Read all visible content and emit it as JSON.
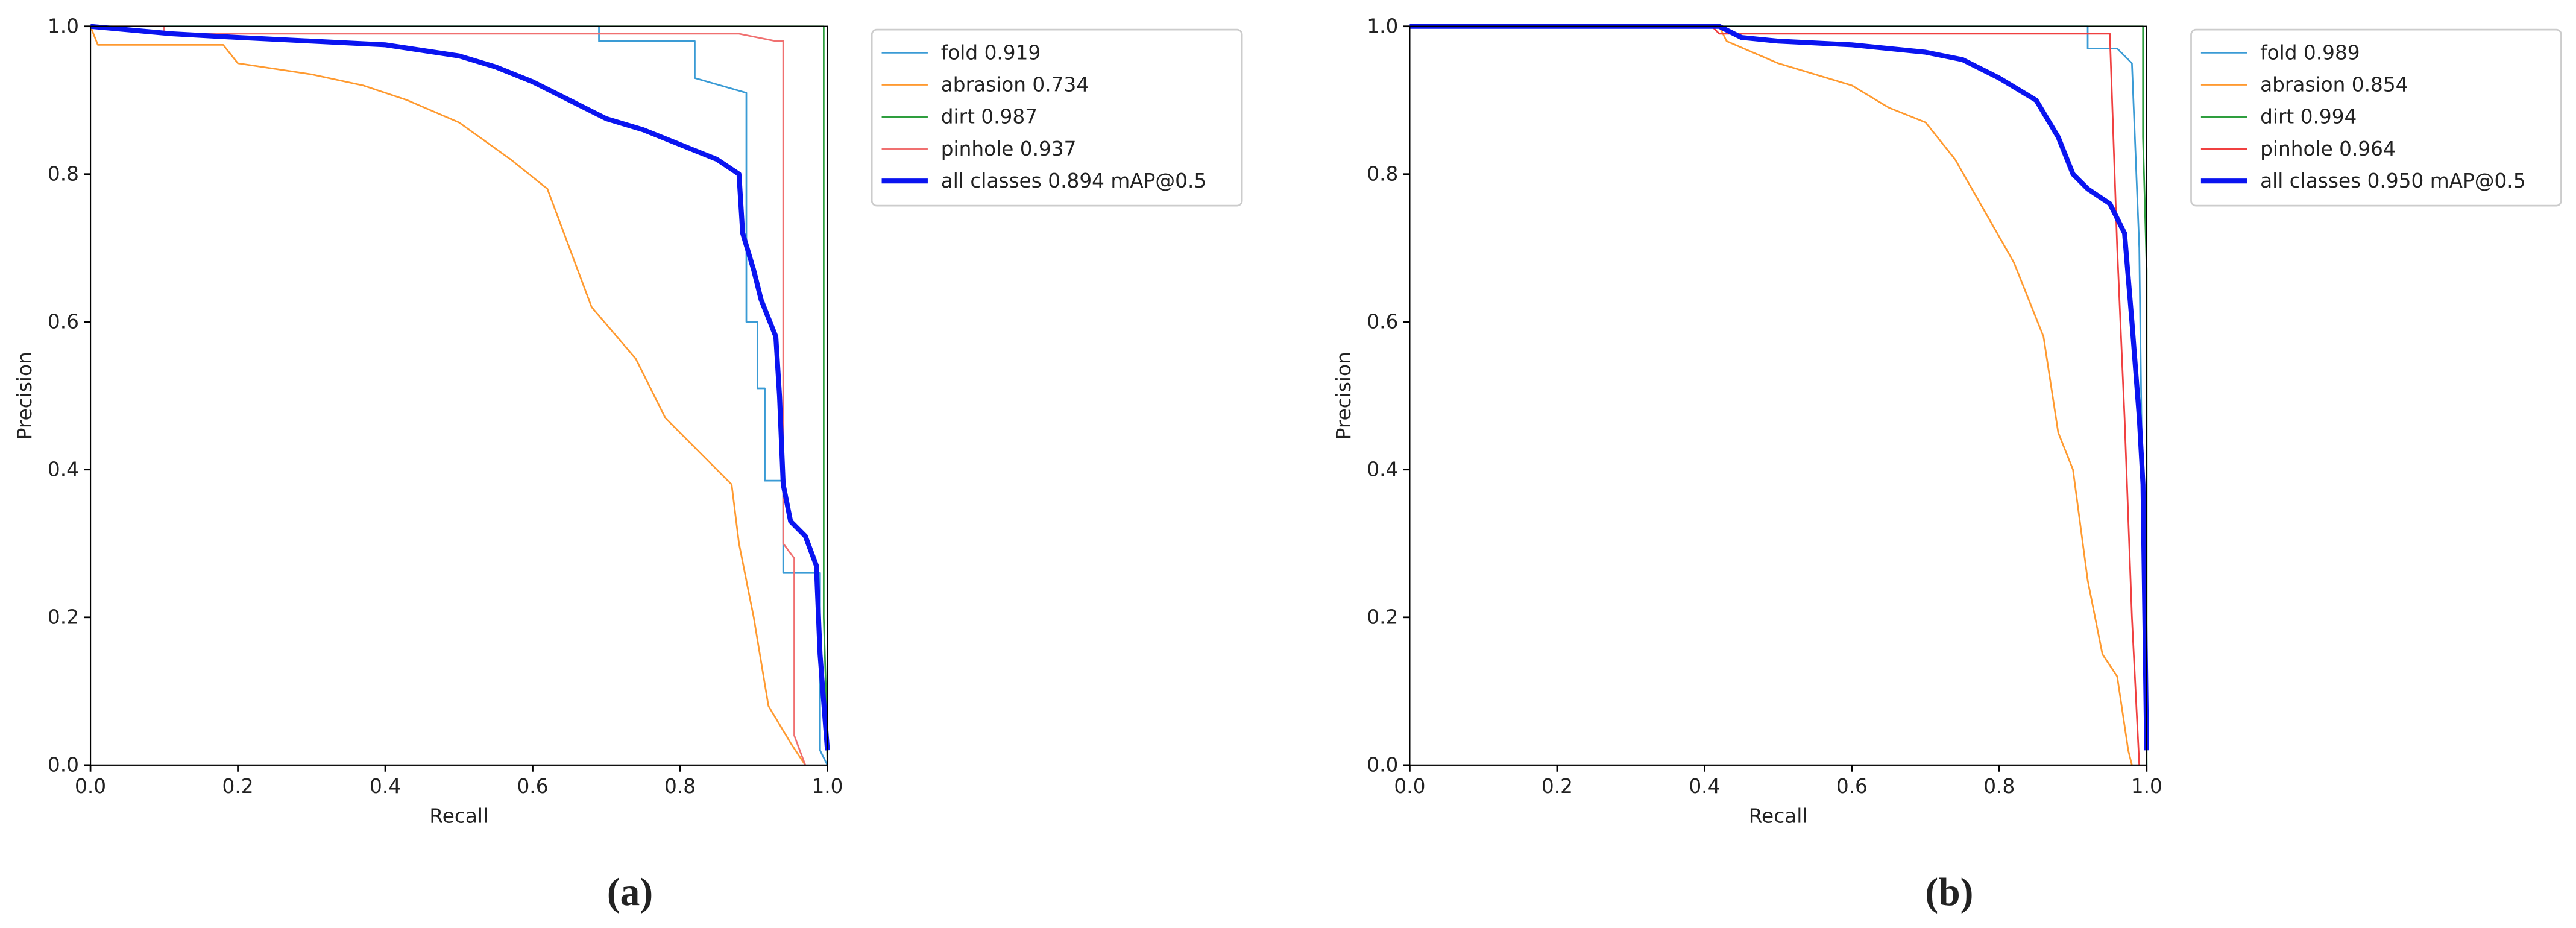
{
  "chart_data": [
    {
      "type": "line",
      "label": "(a)",
      "x_label": "Recall",
      "y_label": "Precision",
      "xlim": [
        0,
        1
      ],
      "ylim": [
        0,
        1
      ],
      "xticks": [
        {
          "value": 0,
          "label": "0.0"
        },
        0.2,
        0.4,
        0.6,
        0.8,
        {
          "value": 1,
          "label": "1.0"
        }
      ],
      "yticks": [
        {
          "value": 0,
          "label": "0.0"
        },
        0.2,
        0.4,
        0.6,
        0.8,
        {
          "value": 1,
          "label": "1.0"
        }
      ],
      "legend": "upper left outside",
      "series": [
        {
          "name": "fold 0.919",
          "color": "#3a9bd5",
          "linewidth": 1,
          "x": [
            0,
            0.69,
            0.69,
            0.82,
            0.82,
            0.89,
            0.89,
            0.905,
            0.905,
            0.915,
            0.915,
            0.94,
            0.94,
            0.99,
            0.99,
            1
          ],
          "values": [
            1,
            1,
            0.98,
            0.98,
            0.93,
            0.91,
            0.6,
            0.6,
            0.51,
            0.51,
            0.385,
            0.385,
            0.26,
            0.26,
            0.02,
            0
          ]
        },
        {
          "name": "abrasion 0.734",
          "color": "#ff9a30",
          "linewidth": 1,
          "x": [
            0,
            0.01,
            0.18,
            0.2,
            0.3,
            0.37,
            0.43,
            0.5,
            0.57,
            0.62,
            0.65,
            0.68,
            0.74,
            0.78,
            0.83,
            0.87,
            0.88,
            0.9,
            0.92,
            0.95,
            0.97
          ],
          "values": [
            1,
            0.975,
            0.975,
            0.95,
            0.935,
            0.92,
            0.9,
            0.87,
            0.82,
            0.78,
            0.7,
            0.62,
            0.55,
            0.47,
            0.42,
            0.38,
            0.3,
            0.2,
            0.08,
            0.03,
            0
          ]
        },
        {
          "name": "dirt 0.987",
          "color": "#2e9e3e",
          "linewidth": 1,
          "x": [
            0,
            0.995,
            0.995,
            0.998,
            1
          ],
          "values": [
            1,
            1,
            0.2,
            0.1,
            0
          ]
        },
        {
          "name": "pinhole 0.937",
          "color": "#f07070",
          "linewidth": 1,
          "x": [
            0,
            0.1,
            0.1,
            0.88,
            0.93,
            0.94,
            0.94,
            0.955,
            0.955,
            0.97
          ],
          "values": [
            1,
            1,
            0.99,
            0.99,
            0.98,
            0.98,
            0.3,
            0.28,
            0.04,
            0
          ]
        },
        {
          "name": "all classes 0.894 mAP@0.5",
          "color": "#0a14f0",
          "linewidth": 3,
          "x": [
            0,
            0.11,
            0.2,
            0.3,
            0.4,
            0.5,
            0.55,
            0.6,
            0.65,
            0.7,
            0.75,
            0.8,
            0.85,
            0.88,
            0.885,
            0.9,
            0.91,
            0.93,
            0.935,
            0.94,
            0.95,
            0.97,
            0.985,
            0.99,
            1
          ],
          "values": [
            1,
            0.99,
            0.985,
            0.98,
            0.975,
            0.96,
            0.945,
            0.925,
            0.9,
            0.875,
            0.86,
            0.84,
            0.82,
            0.8,
            0.72,
            0.67,
            0.63,
            0.58,
            0.5,
            0.38,
            0.33,
            0.31,
            0.27,
            0.15,
            0.02
          ]
        }
      ]
    },
    {
      "type": "line",
      "label": "(b)",
      "x_label": "Recall",
      "y_label": "Precision",
      "xlim": [
        0,
        1
      ],
      "ylim": [
        0,
        1
      ],
      "xticks": [
        {
          "value": 0,
          "label": "0.0"
        },
        0.2,
        0.4,
        0.6,
        0.8,
        {
          "value": 1,
          "label": "1.0"
        }
      ],
      "yticks": [
        {
          "value": 0,
          "label": "0.0"
        },
        0.2,
        0.4,
        0.6,
        0.8,
        {
          "value": 1,
          "label": "1.0"
        }
      ],
      "legend": "upper left outside",
      "series": [
        {
          "name": "fold 0.989",
          "color": "#3a9bd5",
          "linewidth": 1,
          "x": [
            0,
            0.92,
            0.92,
            0.96,
            0.98,
            0.99,
            0.995,
            1
          ],
          "values": [
            1,
            1,
            0.97,
            0.97,
            0.95,
            0.7,
            0.3,
            0
          ]
        },
        {
          "name": "abrasion 0.854",
          "color": "#ff9a30",
          "linewidth": 1,
          "x": [
            0,
            0.42,
            0.43,
            0.5,
            0.6,
            0.65,
            0.7,
            0.74,
            0.78,
            0.82,
            0.86,
            0.88,
            0.9,
            0.92,
            0.94,
            0.96,
            0.975,
            0.98
          ],
          "values": [
            1,
            1,
            0.98,
            0.95,
            0.92,
            0.89,
            0.87,
            0.82,
            0.75,
            0.68,
            0.58,
            0.45,
            0.4,
            0.25,
            0.15,
            0.12,
            0.02,
            0
          ]
        },
        {
          "name": "dirt 0.994",
          "color": "#2e9e3e",
          "linewidth": 1,
          "x": [
            0,
            0.995,
            0.995,
            1,
            1
          ],
          "values": [
            1,
            1,
            0.85,
            0.67,
            0
          ]
        },
        {
          "name": "pinhole 0.964",
          "color": "#f04040",
          "linewidth": 1,
          "x": [
            0,
            0.41,
            0.42,
            0.95,
            0.96,
            0.97,
            0.98,
            0.985,
            0.99
          ],
          "values": [
            1,
            1,
            0.99,
            0.99,
            0.7,
            0.47,
            0.2,
            0.1,
            0
          ]
        },
        {
          "name": "all classes 0.950 mAP@0.5",
          "color": "#0a14f0",
          "linewidth": 3,
          "x": [
            0,
            0.42,
            0.45,
            0.5,
            0.6,
            0.7,
            0.75,
            0.8,
            0.85,
            0.88,
            0.9,
            0.92,
            0.95,
            0.97,
            0.98,
            0.99,
            0.995,
            1
          ],
          "values": [
            1,
            1,
            0.985,
            0.98,
            0.975,
            0.965,
            0.955,
            0.93,
            0.9,
            0.85,
            0.8,
            0.78,
            0.76,
            0.72,
            0.6,
            0.47,
            0.38,
            0.02
          ]
        }
      ]
    }
  ]
}
